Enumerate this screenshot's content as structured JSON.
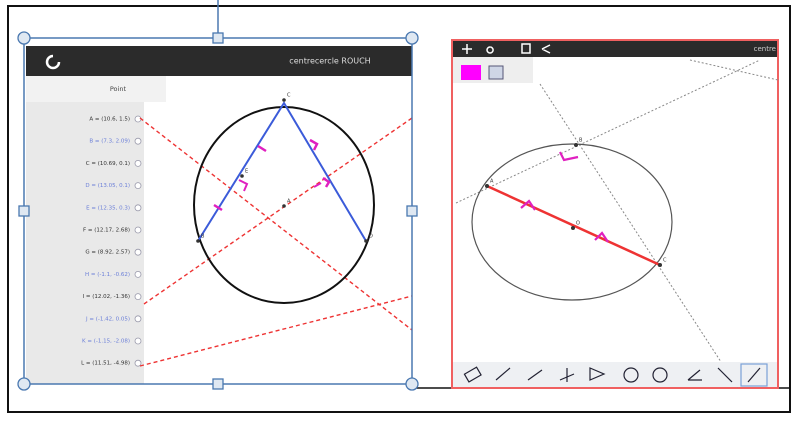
{
  "left_app": {
    "title": "centrecercle ROUCH",
    "panel_header": "Point",
    "items": [
      "A = (10.6, 1.5)",
      "B = (7.3, 2.09)",
      "C = (10.69, 0.1)",
      "D = (13.05, 0.1)",
      "E = (12.35, 0.3)",
      "F = (12.17, 2.68)",
      "G = (8.92, 2.57)",
      "H = (-1.1, -0.62)",
      "I = (12.02, -1.36)",
      "J = (-1.42, 0.05)",
      "K = (-1.15, -2.08)",
      "L = (11.51, -4.98)"
    ],
    "point_labels": [
      "C",
      "A",
      "B",
      "D",
      "E"
    ]
  },
  "right_app": {
    "title": "centre",
    "point_labels": [
      "B",
      "O",
      "A",
      "C"
    ]
  }
}
